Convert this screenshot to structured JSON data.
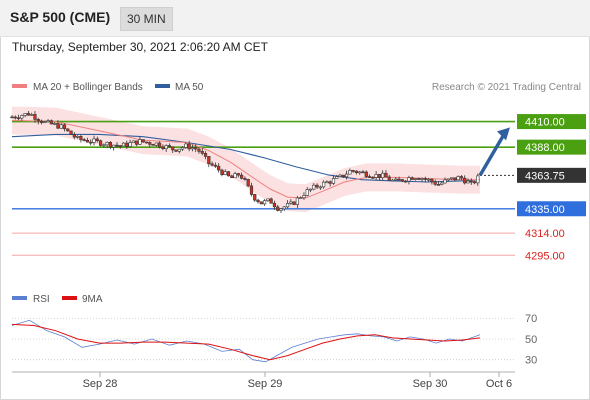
{
  "header": {
    "title": "S&P 500 (CME)",
    "timeframe": "30 MIN"
  },
  "timestamp": "Thursday, September 30, 2021 2:06:20 AM CET",
  "legend": [
    {
      "label": "MA 20 + Bollinger Bands",
      "color": "#f08080"
    },
    {
      "label": "MA 50",
      "color": "#2f5f9e"
    }
  ],
  "credit": "Research © 2021 Trading Central",
  "rsi_legend": [
    {
      "label": "RSI",
      "color": "#5b7fd1"
    },
    {
      "label": "9MA",
      "color": "#dd1111"
    }
  ],
  "colors": {
    "resistance": "#4aa011",
    "support": "#2f6fdd",
    "minor_support": "#f4a6a6",
    "current": "#333333",
    "forecast_arrow": "#2f5f9e"
  },
  "chart_data": [
    {
      "type": "candlestick",
      "title": "S&P 500 (CME) 30 MIN",
      "price_range": [
        4272,
        4432
      ],
      "x_ticks": [
        "Sep 28",
        "Sep 29",
        "Sep 30",
        "Oct 6"
      ],
      "levels": [
        {
          "value": 4410.0,
          "label": "4410.00",
          "kind": "resistance"
        },
        {
          "value": 4388.0,
          "label": "4388.00",
          "kind": "resistance"
        },
        {
          "value": 4363.75,
          "label": "4363.75",
          "kind": "current"
        },
        {
          "value": 4335.0,
          "label": "4335.00",
          "kind": "support"
        },
        {
          "value": 4314.0,
          "label": "4314.00",
          "kind": "minor_support"
        },
        {
          "value": 4295.0,
          "label": "4295.00",
          "kind": "minor_support"
        }
      ],
      "close_path": [
        [
          0,
          4414
        ],
        [
          8,
          4417
        ],
        [
          15,
          4409
        ],
        [
          22,
          4406
        ],
        [
          30,
          4395
        ],
        [
          40,
          4392
        ],
        [
          50,
          4389
        ],
        [
          58,
          4393
        ],
        [
          66,
          4391
        ],
        [
          74,
          4386
        ],
        [
          80,
          4389
        ],
        [
          85,
          4386
        ],
        [
          90,
          4374
        ],
        [
          95,
          4368
        ],
        [
          100,
          4361
        ],
        [
          104,
          4365
        ],
        [
          106,
          4360
        ],
        [
          110,
          4346
        ],
        [
          114,
          4340
        ],
        [
          118,
          4342
        ],
        [
          122,
          4335
        ],
        [
          128,
          4339
        ],
        [
          134,
          4349
        ],
        [
          140,
          4355
        ],
        [
          146,
          4359
        ],
        [
          150,
          4362
        ],
        [
          155,
          4368
        ],
        [
          160,
          4366
        ],
        [
          165,
          4364
        ],
        [
          170,
          4363
        ],
        [
          175,
          4358
        ],
        [
          180,
          4361
        ],
        [
          185,
          4363
        ],
        [
          190,
          4360
        ],
        [
          195,
          4356
        ],
        [
          200,
          4360
        ],
        [
          205,
          4362
        ],
        [
          210,
          4356
        ],
        [
          214,
          4363
        ]
      ],
      "ma20": [
        [
          0,
          4411
        ],
        [
          20,
          4410
        ],
        [
          40,
          4402
        ],
        [
          60,
          4394
        ],
        [
          80,
          4392
        ],
        [
          90,
          4385
        ],
        [
          100,
          4375
        ],
        [
          110,
          4362
        ],
        [
          118,
          4352
        ],
        [
          126,
          4345
        ],
        [
          134,
          4344
        ],
        [
          142,
          4350
        ],
        [
          152,
          4358
        ],
        [
          162,
          4362
        ],
        [
          175,
          4362
        ],
        [
          190,
          4361
        ],
        [
          205,
          4360
        ],
        [
          214,
          4360
        ]
      ],
      "ma50": [
        [
          0,
          4397
        ],
        [
          20,
          4399
        ],
        [
          40,
          4399
        ],
        [
          60,
          4397
        ],
        [
          80,
          4392
        ],
        [
          100,
          4386
        ],
        [
          115,
          4379
        ],
        [
          130,
          4371
        ],
        [
          145,
          4364
        ],
        [
          160,
          4360
        ],
        [
          175,
          4359
        ],
        [
          190,
          4358
        ],
        [
          205,
          4359
        ],
        [
          214,
          4360
        ]
      ],
      "bollinger_width": 12,
      "forecast_target": 4405
    },
    {
      "type": "line",
      "title": "RSI",
      "y_ticks": [
        70,
        50,
        30
      ],
      "ylim": [
        22,
        76
      ],
      "series": [
        {
          "name": "RSI",
          "color": "#5b7fd1",
          "points": [
            [
              0,
              63
            ],
            [
              8,
              68
            ],
            [
              16,
              58
            ],
            [
              24,
              52
            ],
            [
              32,
              42
            ],
            [
              40,
              45
            ],
            [
              48,
              49
            ],
            [
              56,
              45
            ],
            [
              64,
              50
            ],
            [
              72,
              44
            ],
            [
              80,
              48
            ],
            [
              88,
              45
            ],
            [
              96,
              38
            ],
            [
              104,
              40
            ],
            [
              110,
              30
            ],
            [
              116,
              28
            ],
            [
              122,
              35
            ],
            [
              128,
              42
            ],
            [
              134,
              46
            ],
            [
              140,
              50
            ],
            [
              146,
              52
            ],
            [
              152,
              54
            ],
            [
              158,
              55
            ],
            [
              164,
              53
            ],
            [
              170,
              52
            ],
            [
              176,
              48
            ],
            [
              182,
              52
            ],
            [
              188,
              50
            ],
            [
              194,
              46
            ],
            [
              200,
              50
            ],
            [
              206,
              48
            ],
            [
              214,
              54
            ]
          ]
        },
        {
          "name": "9MA",
          "color": "#dd1111",
          "points": [
            [
              0,
              64
            ],
            [
              10,
              63
            ],
            [
              20,
              58
            ],
            [
              30,
              50
            ],
            [
              40,
              46
            ],
            [
              50,
              46
            ],
            [
              60,
              47
            ],
            [
              70,
              47
            ],
            [
              80,
              46
            ],
            [
              90,
              45
            ],
            [
              100,
              40
            ],
            [
              110,
              34
            ],
            [
              118,
              30
            ],
            [
              126,
              34
            ],
            [
              134,
              40
            ],
            [
              142,
              46
            ],
            [
              150,
              50
            ],
            [
              158,
              53
            ],
            [
              166,
              54
            ],
            [
              174,
              51
            ],
            [
              182,
              50
            ],
            [
              190,
              49
            ],
            [
              198,
              48
            ],
            [
              206,
              49
            ],
            [
              214,
              51
            ]
          ]
        }
      ]
    }
  ]
}
